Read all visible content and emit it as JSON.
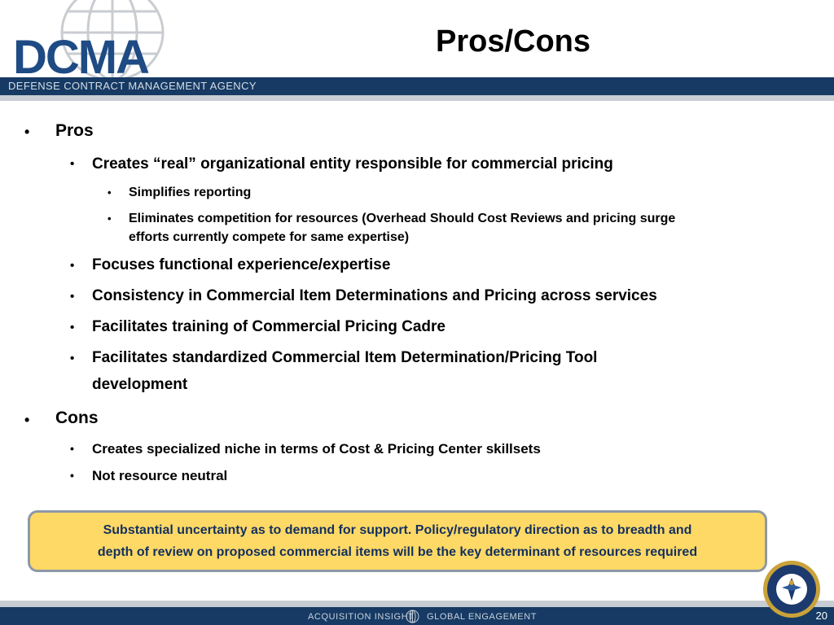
{
  "header": {
    "logo_text": "DCMA",
    "agency": "DEFENSE CONTRACT MANAGEMENT AGENCY",
    "title": "Pros/Cons"
  },
  "pros": {
    "label": "Pros",
    "items": [
      "Creates “real” organizational entity responsible for commercial pricing",
      "Focuses functional experience/expertise",
      "Consistency in Commercial Item Determinations and Pricing across services",
      "Facilitates training of Commercial Pricing Cadre",
      "Facilitates standardized Commercial Item Determination/Pricing Tool",
      "development"
    ],
    "subitems": [
      "Simplifies reporting",
      "Eliminates competition for resources (Overhead Should Cost Reviews and pricing surge",
      "efforts currently compete for same expertise)"
    ]
  },
  "cons": {
    "label": "Cons",
    "items": [
      "Creates specialized niche in terms of Cost & Pricing Center skillsets",
      "Not resource neutral"
    ]
  },
  "callout": {
    "line1": "Substantial uncertainty as to demand for support.  Policy/regulatory direction as to breadth and",
    "line2": "depth of review on proposed commercial items will be the key determinant of resources required"
  },
  "footer": {
    "left": "ACQUISITION INSIGHT",
    "right": "GLOBAL ENGAGEMENT",
    "page_number": "20"
  },
  "colors": {
    "navy": "#163a63",
    "logo_blue": "#1e4b84",
    "callout_fill": "#ffd966",
    "callout_text": "#13305e"
  }
}
